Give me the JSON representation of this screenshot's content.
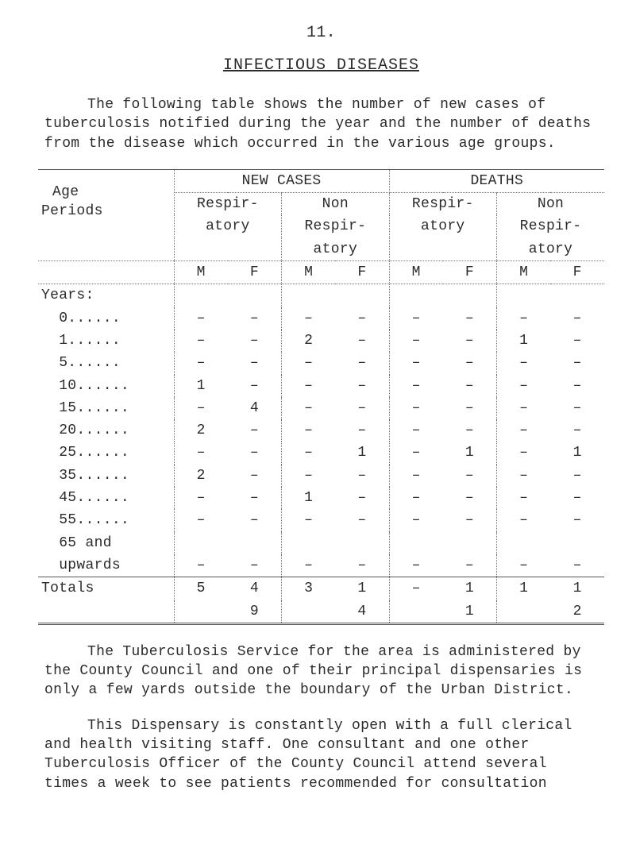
{
  "page_number": "11.",
  "title": "INFECTIOUS DISEASES",
  "intro": "The following table shows the number of new cases of tuberculosis notified during the year and the number of deaths from the disease which occurred in the various age groups.",
  "table": {
    "corner_label": "Age\nPeriods",
    "group_headers": [
      "NEW CASES",
      "DEATHS"
    ],
    "sub_headers_line1": [
      "Respir-",
      "Non",
      "Respir-",
      "Non"
    ],
    "sub_headers_line2": [
      "atory",
      "Respir-",
      "atory",
      "Respir-"
    ],
    "sub_headers_line3": [
      "",
      "atory",
      "",
      "atory"
    ],
    "mf_headers": [
      "M",
      "F",
      "M",
      "F",
      "M",
      "F",
      "M",
      "F"
    ],
    "years_label": "Years:",
    "rows": [
      {
        "label": "0......",
        "cells": [
          "–",
          "–",
          "–",
          "–",
          "–",
          "–",
          "–",
          "–"
        ]
      },
      {
        "label": "1......",
        "cells": [
          "–",
          "–",
          "2",
          "–",
          "–",
          "–",
          "1",
          "–"
        ]
      },
      {
        "label": "5......",
        "cells": [
          "–",
          "–",
          "–",
          "–",
          "–",
          "–",
          "–",
          "–"
        ]
      },
      {
        "label": "10......",
        "cells": [
          "1",
          "–",
          "–",
          "–",
          "–",
          "–",
          "–",
          "–"
        ]
      },
      {
        "label": "15......",
        "cells": [
          "–",
          "4",
          "–",
          "–",
          "–",
          "–",
          "–",
          "–"
        ]
      },
      {
        "label": "20......",
        "cells": [
          "2",
          "–",
          "–",
          "–",
          "–",
          "–",
          "–",
          "–"
        ]
      },
      {
        "label": "25......",
        "cells": [
          "–",
          "–",
          "–",
          "1",
          "–",
          "1",
          "–",
          "1"
        ]
      },
      {
        "label": "35......",
        "cells": [
          "2",
          "–",
          "–",
          "–",
          "–",
          "–",
          "–",
          "–"
        ]
      },
      {
        "label": "45......",
        "cells": [
          "–",
          "–",
          "1",
          "–",
          "–",
          "–",
          "–",
          "–"
        ]
      },
      {
        "label": "55......",
        "cells": [
          "–",
          "–",
          "–",
          "–",
          "–",
          "–",
          "–",
          "–"
        ]
      },
      {
        "label": "65 and",
        "cells": [
          "",
          "",
          "",
          "",
          "",
          "",
          "",
          ""
        ]
      },
      {
        "label": "upwards",
        "cells": [
          "–",
          "–",
          "–",
          "–",
          "–",
          "–",
          "–",
          "–"
        ]
      }
    ],
    "totals_label": "Totals",
    "totals_line1": [
      "5",
      "4",
      "3",
      "1",
      "–",
      "1",
      "1",
      "1"
    ],
    "totals_line2": [
      "",
      "9",
      "",
      "4",
      "",
      "1",
      "",
      "2"
    ]
  },
  "para2": "The Tuberculosis Service for the area is administered by the County Council and one of their principal dispensaries is only a few yards outside the boundary of the Urban District.",
  "para3": "This Dispensary is constantly open with a full clerical and health visiting staff.  One consultant and one other Tuberculosis Officer of the County Council attend several times a week to see patients recommended for consultation"
}
